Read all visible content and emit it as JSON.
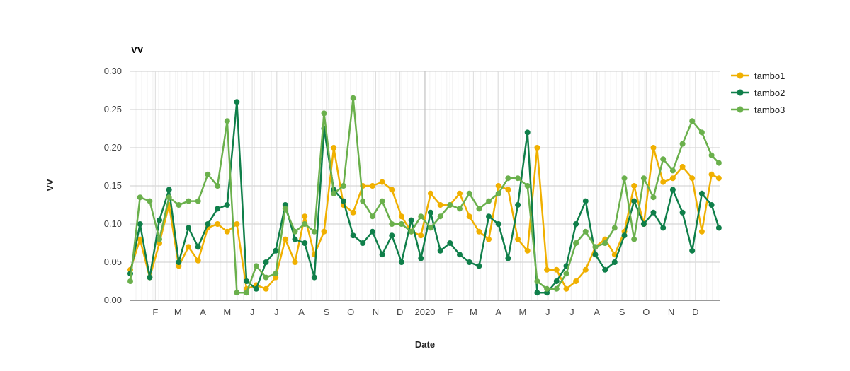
{
  "chart_data": {
    "type": "line",
    "title": "VV",
    "xlabel": "Date",
    "ylabel": "VV",
    "ylim": [
      0,
      0.3
    ],
    "y_ticks": [
      "0.00",
      "0.05",
      "0.10",
      "0.15",
      "0.20",
      "0.25",
      "0.30"
    ],
    "x_range": [
      "2019-01-01",
      "2020-12-31"
    ],
    "x_ticks": [
      {
        "date": "2019-02-01",
        "label": "F"
      },
      {
        "date": "2019-03-01",
        "label": "M"
      },
      {
        "date": "2019-04-01",
        "label": "A"
      },
      {
        "date": "2019-05-01",
        "label": "M"
      },
      {
        "date": "2019-06-01",
        "label": "J"
      },
      {
        "date": "2019-07-01",
        "label": "J"
      },
      {
        "date": "2019-08-01",
        "label": "A"
      },
      {
        "date": "2019-09-01",
        "label": "S"
      },
      {
        "date": "2019-10-01",
        "label": "O"
      },
      {
        "date": "2019-11-01",
        "label": "N"
      },
      {
        "date": "2019-12-01",
        "label": "D"
      },
      {
        "date": "2020-01-01",
        "label": "2020"
      },
      {
        "date": "2020-02-01",
        "label": "F"
      },
      {
        "date": "2020-03-01",
        "label": "M"
      },
      {
        "date": "2020-04-01",
        "label": "A"
      },
      {
        "date": "2020-05-01",
        "label": "M"
      },
      {
        "date": "2020-06-01",
        "label": "J"
      },
      {
        "date": "2020-07-01",
        "label": "J"
      },
      {
        "date": "2020-08-01",
        "label": "A"
      },
      {
        "date": "2020-09-01",
        "label": "S"
      },
      {
        "date": "2020-10-01",
        "label": "O"
      },
      {
        "date": "2020-11-01",
        "label": "N"
      },
      {
        "date": "2020-12-01",
        "label": "D"
      }
    ],
    "grid": true,
    "legend_position": "right",
    "series": [
      {
        "name": "tambo1",
        "color": "#f0b000",
        "x": [
          "2019-01-01",
          "2019-01-13",
          "2019-01-25",
          "2019-02-06",
          "2019-02-18",
          "2019-03-02",
          "2019-03-14",
          "2019-03-26",
          "2019-04-07",
          "2019-04-19",
          "2019-05-01",
          "2019-05-13",
          "2019-05-25",
          "2019-06-06",
          "2019-06-18",
          "2019-06-30",
          "2019-07-12",
          "2019-07-24",
          "2019-08-05",
          "2019-08-17",
          "2019-08-29",
          "2019-09-10",
          "2019-09-22",
          "2019-10-04",
          "2019-10-16",
          "2019-10-28",
          "2019-11-09",
          "2019-11-21",
          "2019-12-03",
          "2019-12-15",
          "2019-12-27",
          "2020-01-08",
          "2020-01-20",
          "2020-02-01",
          "2020-02-13",
          "2020-02-25",
          "2020-03-08",
          "2020-03-20",
          "2020-04-01",
          "2020-04-13",
          "2020-04-25",
          "2020-05-07",
          "2020-05-19",
          "2020-05-31",
          "2020-06-12",
          "2020-06-24",
          "2020-07-06",
          "2020-07-18",
          "2020-07-30",
          "2020-08-11",
          "2020-08-23",
          "2020-09-04",
          "2020-09-16",
          "2020-09-28",
          "2020-10-10",
          "2020-10-22",
          "2020-11-03",
          "2020-11-15",
          "2020-11-27",
          "2020-12-09",
          "2020-12-21",
          "2020-12-30"
        ],
        "y": [
          0.04,
          0.08,
          0.03,
          0.075,
          0.125,
          0.045,
          0.07,
          0.052,
          0.095,
          0.1,
          0.09,
          0.1,
          0.015,
          0.02,
          0.015,
          0.03,
          0.08,
          0.05,
          0.11,
          0.06,
          0.09,
          0.2,
          0.125,
          0.115,
          0.15,
          0.15,
          0.155,
          0.145,
          0.11,
          0.09,
          0.085,
          0.14,
          0.125,
          0.125,
          0.14,
          0.11,
          0.09,
          0.08,
          0.15,
          0.145,
          0.08,
          0.065,
          0.2,
          0.04,
          0.04,
          0.015,
          0.025,
          0.04,
          0.07,
          0.08,
          0.06,
          0.09,
          0.15,
          0.1,
          0.2,
          0.155,
          0.16,
          0.175,
          0.16,
          0.09,
          0.165,
          0.16
        ]
      },
      {
        "name": "tambo2",
        "color": "#0f7f4a",
        "x": [
          "2019-01-01",
          "2019-01-13",
          "2019-01-25",
          "2019-02-06",
          "2019-02-18",
          "2019-03-02",
          "2019-03-14",
          "2019-03-26",
          "2019-04-07",
          "2019-04-19",
          "2019-05-01",
          "2019-05-13",
          "2019-05-25",
          "2019-06-06",
          "2019-06-18",
          "2019-06-30",
          "2019-07-12",
          "2019-07-24",
          "2019-08-05",
          "2019-08-17",
          "2019-08-29",
          "2019-09-10",
          "2019-09-22",
          "2019-10-04",
          "2019-10-16",
          "2019-10-28",
          "2019-11-09",
          "2019-11-21",
          "2019-12-03",
          "2019-12-15",
          "2019-12-27",
          "2020-01-08",
          "2020-01-20",
          "2020-02-01",
          "2020-02-13",
          "2020-02-25",
          "2020-03-08",
          "2020-03-20",
          "2020-04-01",
          "2020-04-13",
          "2020-04-25",
          "2020-05-07",
          "2020-05-19",
          "2020-05-31",
          "2020-06-12",
          "2020-06-24",
          "2020-07-06",
          "2020-07-18",
          "2020-07-30",
          "2020-08-11",
          "2020-08-23",
          "2020-09-04",
          "2020-09-16",
          "2020-09-28",
          "2020-10-10",
          "2020-10-22",
          "2020-11-03",
          "2020-11-15",
          "2020-11-27",
          "2020-12-09",
          "2020-12-21",
          "2020-12-30"
        ],
        "y": [
          0.035,
          0.1,
          0.03,
          0.105,
          0.145,
          0.05,
          0.095,
          0.07,
          0.1,
          0.12,
          0.125,
          0.26,
          0.025,
          0.015,
          0.05,
          0.065,
          0.125,
          0.08,
          0.075,
          0.03,
          0.225,
          0.145,
          0.13,
          0.085,
          0.075,
          0.09,
          0.06,
          0.085,
          0.05,
          0.105,
          0.055,
          0.115,
          0.065,
          0.075,
          0.06,
          0.05,
          0.045,
          0.11,
          0.1,
          0.055,
          0.125,
          0.22,
          0.01,
          0.01,
          0.025,
          0.045,
          0.1,
          0.13,
          0.06,
          0.04,
          0.05,
          0.085,
          0.13,
          0.1,
          0.115,
          0.095,
          0.145,
          0.115,
          0.065,
          0.14,
          0.125,
          0.095
        ]
      },
      {
        "name": "tambo3",
        "color": "#6ab04c",
        "x": [
          "2019-01-01",
          "2019-01-13",
          "2019-01-25",
          "2019-02-06",
          "2019-02-18",
          "2019-03-02",
          "2019-03-14",
          "2019-03-26",
          "2019-04-07",
          "2019-04-19",
          "2019-05-01",
          "2019-05-13",
          "2019-05-25",
          "2019-06-06",
          "2019-06-18",
          "2019-06-30",
          "2019-07-12",
          "2019-07-24",
          "2019-08-05",
          "2019-08-17",
          "2019-08-29",
          "2019-09-10",
          "2019-09-22",
          "2019-10-04",
          "2019-10-16",
          "2019-10-28",
          "2019-11-09",
          "2019-11-21",
          "2019-12-03",
          "2019-12-15",
          "2019-12-27",
          "2020-01-08",
          "2020-01-20",
          "2020-02-01",
          "2020-02-13",
          "2020-02-25",
          "2020-03-08",
          "2020-03-20",
          "2020-04-01",
          "2020-04-13",
          "2020-04-25",
          "2020-05-07",
          "2020-05-19",
          "2020-05-31",
          "2020-06-12",
          "2020-06-24",
          "2020-07-06",
          "2020-07-18",
          "2020-07-30",
          "2020-08-11",
          "2020-08-23",
          "2020-09-04",
          "2020-09-16",
          "2020-09-28",
          "2020-10-10",
          "2020-10-22",
          "2020-11-03",
          "2020-11-15",
          "2020-11-27",
          "2020-12-09",
          "2020-12-21",
          "2020-12-30"
        ],
        "y": [
          0.025,
          0.135,
          0.13,
          0.08,
          0.135,
          0.125,
          0.13,
          0.13,
          0.165,
          0.15,
          0.235,
          0.01,
          0.01,
          0.045,
          0.03,
          0.035,
          0.12,
          0.09,
          0.1,
          0.09,
          0.245,
          0.14,
          0.15,
          0.265,
          0.13,
          0.11,
          0.13,
          0.1,
          0.1,
          0.09,
          0.11,
          0.095,
          0.11,
          0.125,
          0.12,
          0.14,
          0.12,
          0.13,
          0.14,
          0.16,
          0.16,
          0.15,
          0.025,
          0.015,
          0.015,
          0.035,
          0.075,
          0.09,
          0.07,
          0.075,
          0.095,
          0.16,
          0.08,
          0.16,
          0.135,
          0.185,
          0.17,
          0.205,
          0.235,
          0.22,
          0.19,
          0.18
        ]
      }
    ]
  }
}
